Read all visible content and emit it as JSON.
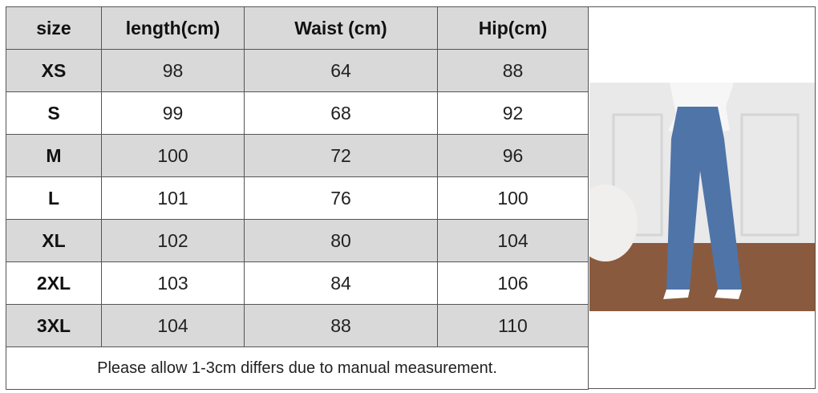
{
  "table": {
    "header": [
      "size",
      "length(cm)",
      "Waist (cm)",
      "Hip(cm)"
    ],
    "rows": [
      [
        "XS",
        98,
        64,
        88
      ],
      [
        "S",
        99,
        68,
        92
      ],
      [
        "M",
        100,
        72,
        96
      ],
      [
        "L",
        101,
        76,
        100
      ],
      [
        "XL",
        102,
        80,
        104
      ],
      [
        "2XL",
        103,
        84,
        106
      ],
      [
        "3XL",
        104,
        88,
        110
      ]
    ],
    "note": "Please allow 1-3cm differs due to manual measurement."
  }
}
